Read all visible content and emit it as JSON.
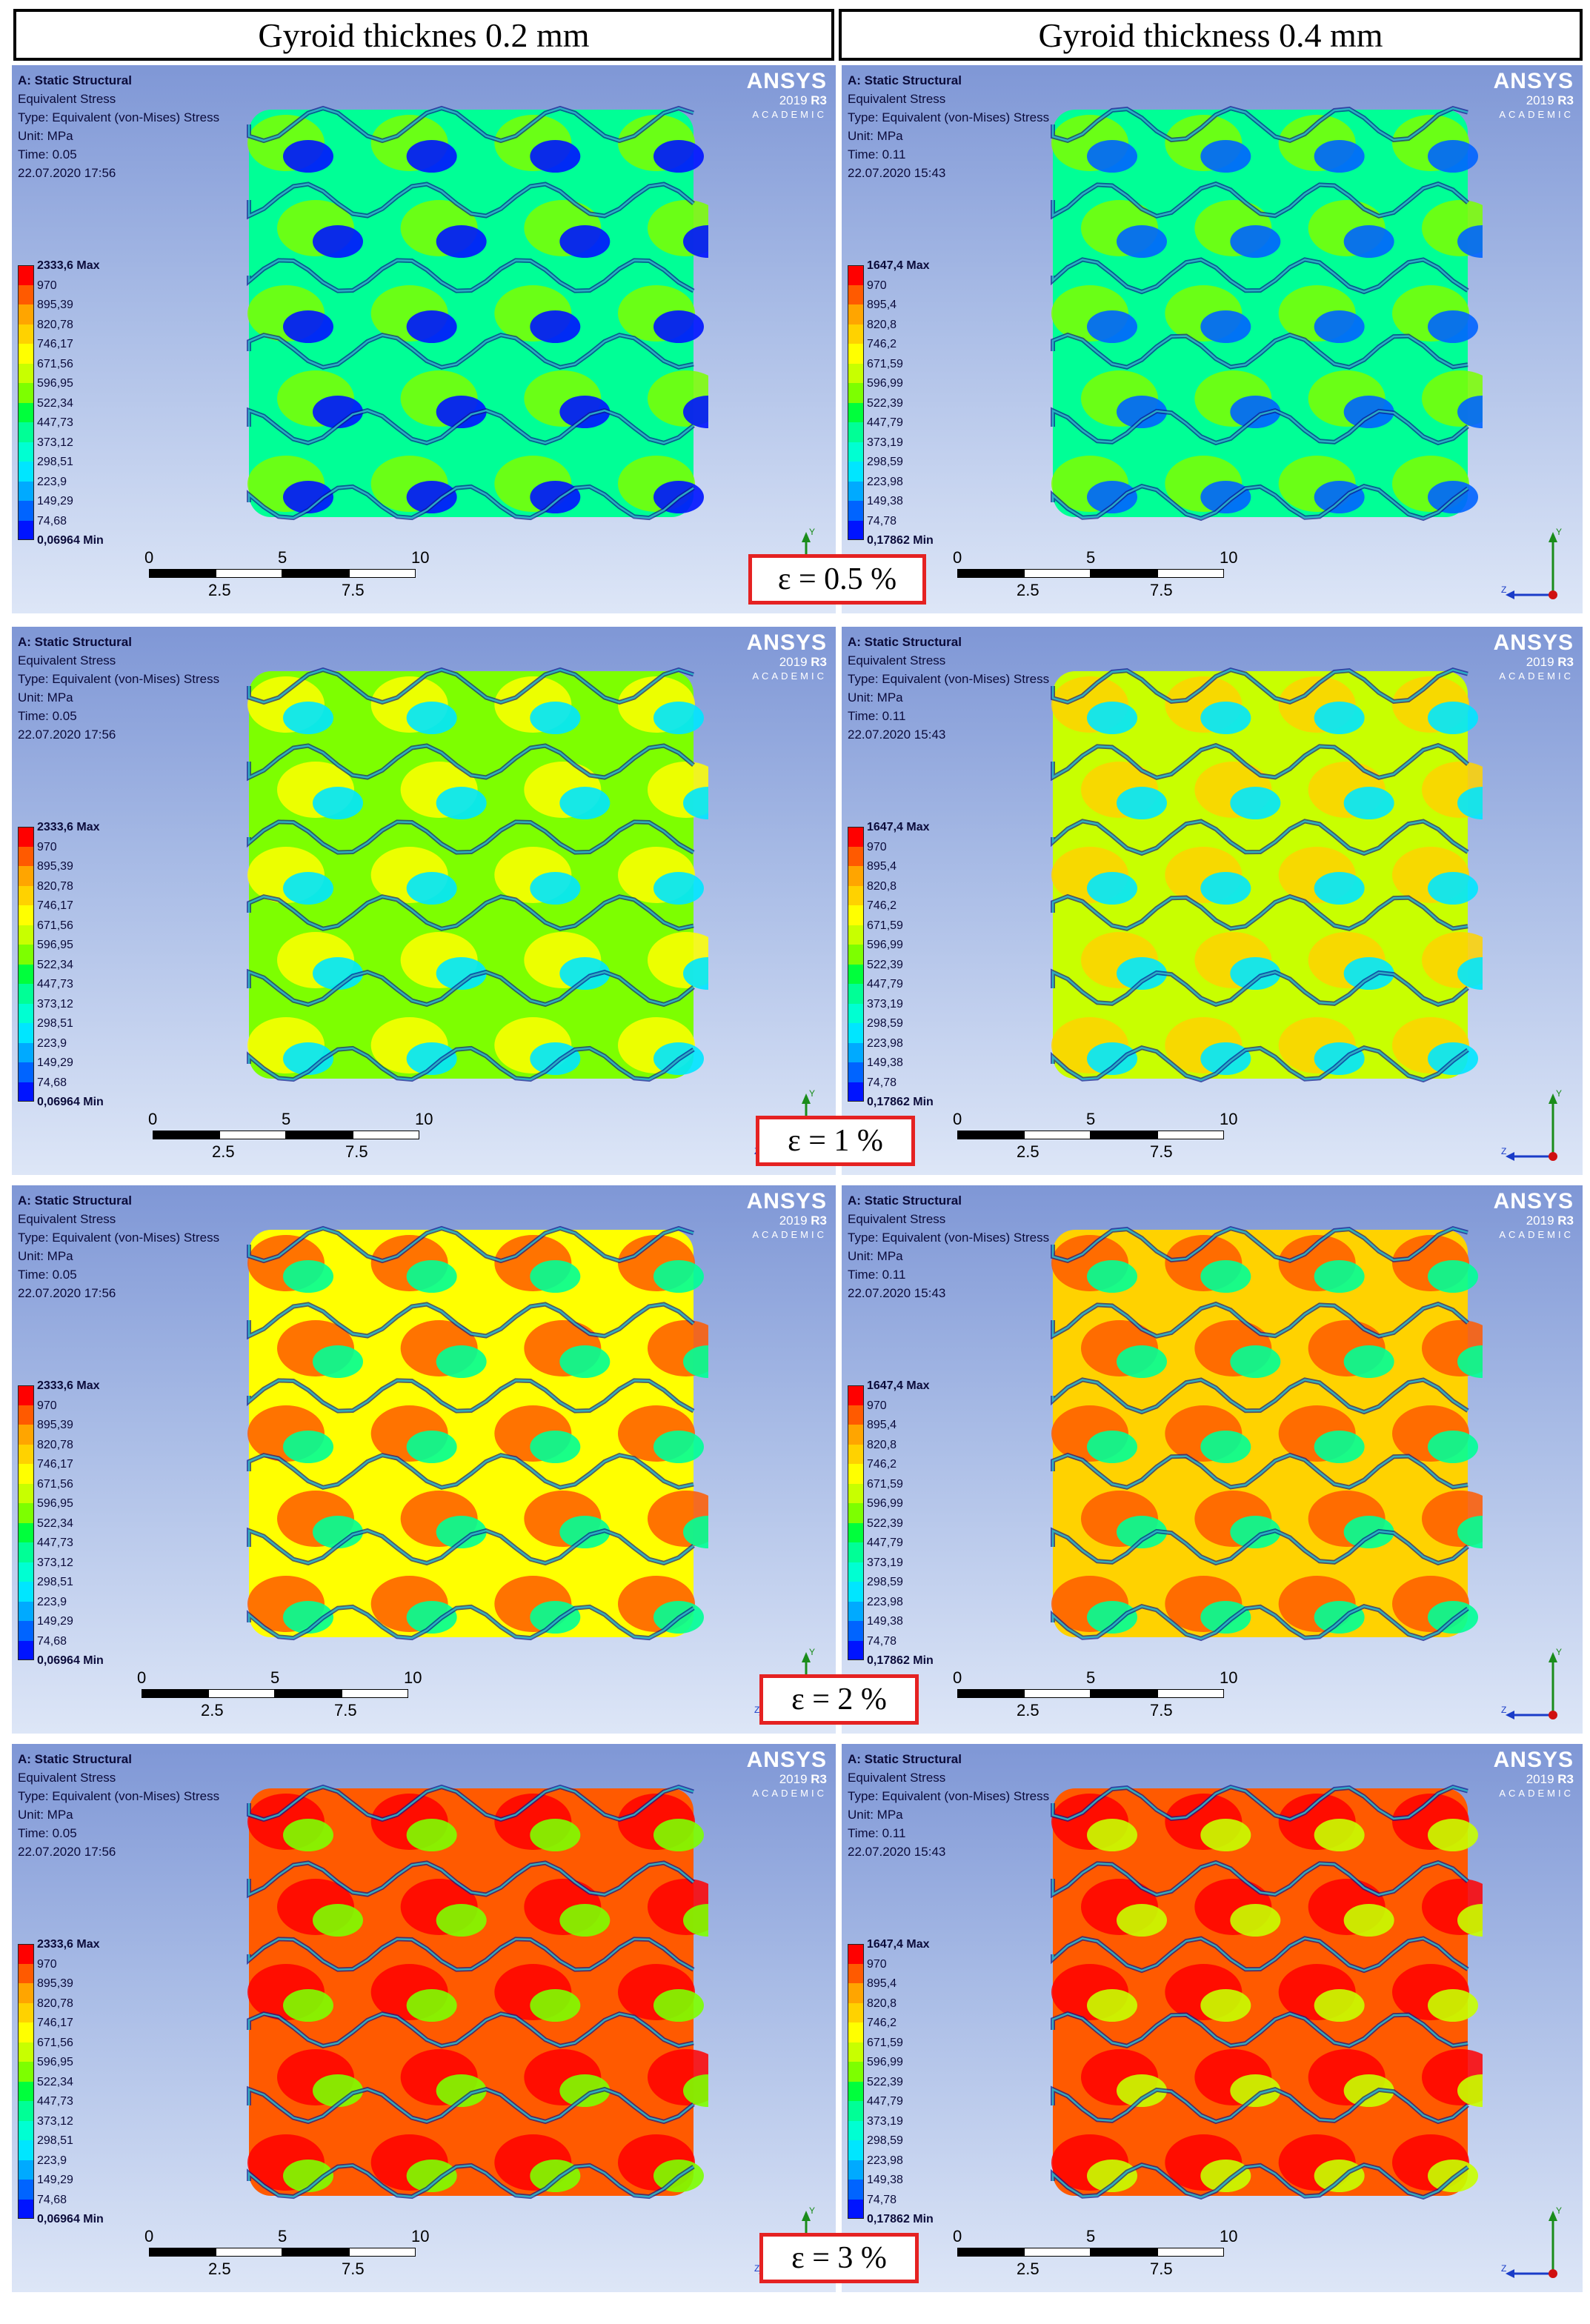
{
  "headers": {
    "left": "Gyroid thicknes 0.2 mm",
    "right": "Gyroid thickness 0.4 mm"
  },
  "columns": [
    {
      "info": {
        "title": "A: Static Structural",
        "line2": "Equivalent Stress",
        "line3": "Type: Equivalent (von-Mises) Stress",
        "line4": "Unit: MPa",
        "time": "Time: 0.05",
        "date": "22.07.2020 17:56"
      },
      "legend_labels": [
        "2333,6 Max",
        "970",
        "895,39",
        "820,78",
        "746,17",
        "671,56",
        "596,95",
        "522,34",
        "447,73",
        "373,12",
        "298,51",
        "223,9",
        "149,29",
        "74,68",
        "0,06964 Min"
      ]
    },
    {
      "info": {
        "title": "A: Static Structural",
        "line2": "Equivalent Stress",
        "line3": "Type: Equivalent (von-Mises) Stress",
        "line4": "Unit: MPa",
        "time": "Time: 0.11",
        "date": "22.07.2020 15:43"
      },
      "legend_labels": [
        "1647,4 Max",
        "970",
        "895,4",
        "820,8",
        "746,2",
        "671,59",
        "596,99",
        "522,39",
        "447,79",
        "373,19",
        "298,59",
        "223,98",
        "149,38",
        "74,78",
        "0,17862 Min"
      ]
    }
  ],
  "brand": {
    "name": "ANSYS",
    "version_prefix": "2019 ",
    "version_suffix": "R3",
    "edition": "ACADEMIC"
  },
  "scale_bar": {
    "top_labels": [
      "0",
      "5",
      "10"
    ],
    "bottom_labels": [
      "2.5",
      "7.5"
    ]
  },
  "axes": {
    "y": "Y",
    "z": "Z"
  },
  "strains": [
    "ε = 0.5 %",
    "ε = 1 %",
    "ε = 2 %",
    "ε = 3 %"
  ],
  "stress_levels": [
    0.35,
    0.55,
    0.72,
    0.92
  ],
  "colors": {
    "legend": [
      "#ff0000",
      "#ff5a00",
      "#ffa500",
      "#ffd200",
      "#ffff00",
      "#c8ff00",
      "#7dff00",
      "#00ff3c",
      "#00ff96",
      "#00ffd2",
      "#00e6ff",
      "#00aaff",
      "#0064ff",
      "#0014ff"
    ],
    "strain_box": "#e52222",
    "panel_top": "#7f97d6",
    "panel_bottom": "#dde6f7"
  }
}
